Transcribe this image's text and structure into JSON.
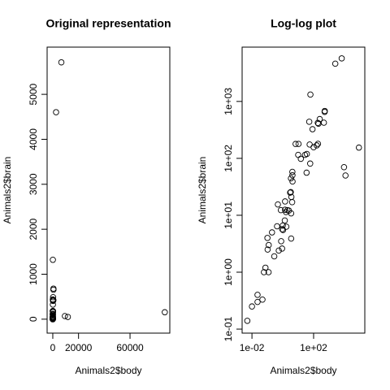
{
  "chart_data": [
    {
      "type": "scatter",
      "title": "Original representation",
      "x_label": "Animals2$body",
      "y_label": "Animals2$brain",
      "log": false,
      "x": [
        3.385,
        0.48,
        1.35,
        465,
        36.33,
        27.66,
        14.83,
        1.04,
        4.19,
        0.425,
        0.101,
        0.92,
        1,
        0.005,
        0.06,
        3.5,
        2,
        1.7,
        2547,
        0.023,
        187.1,
        521,
        0.785,
        10,
        3.3,
        0.2,
        1.41,
        529,
        207,
        85,
        0.75,
        62,
        6654,
        3.5,
        6.8,
        35,
        4.05,
        0.12,
        0.023,
        0.01,
        1.4,
        250,
        2.5,
        55.5,
        100,
        52.16,
        10.55,
        0.55,
        60,
        3.6,
        4.288,
        0.28,
        0.075,
        0.122,
        0.048,
        192,
        3,
        160,
        0.9,
        1.62,
        0.104,
        4.235,
        11700,
        9400,
        87000
      ],
      "values": [
        44.5,
        15.5,
        8.1,
        423,
        119.5,
        115,
        98.2,
        5.5,
        58,
        6.4,
        4,
        5.7,
        6.6,
        0.14,
        1,
        10.8,
        12.3,
        6.3,
        4603,
        0.3,
        419,
        655,
        3.5,
        115,
        25.6,
        5,
        17.5,
        680,
        406,
        325,
        12.3,
        1320,
        5712,
        3.9,
        179,
        56,
        17,
        1,
        0.4,
        0.25,
        12.5,
        490,
        12.1,
        175,
        157,
        440,
        179.5,
        2.4,
        81,
        21,
        39.2,
        1.9,
        1.2,
        3,
        0.33,
        180,
        25,
        169,
        2.6,
        11.4,
        2.5,
        50.4,
        50,
        70,
        154.5
      ],
      "xlim": [
        -4400,
        90900
      ],
      "ylim": [
        -310,
        6050
      ],
      "xticks": [
        0,
        20000,
        60000
      ],
      "yticks": [
        0,
        1000,
        2000,
        3000,
        4000,
        5000
      ]
    },
    {
      "type": "scatter",
      "title": "Log-log plot",
      "x_label": "Animals2$body",
      "y_label": "Animals2$brain",
      "log": true,
      "x": [
        3.385,
        0.48,
        1.35,
        465,
        36.33,
        27.66,
        14.83,
        1.04,
        4.19,
        0.425,
        0.101,
        0.92,
        1,
        0.005,
        0.06,
        3.5,
        2,
        1.7,
        2547,
        0.023,
        187.1,
        521,
        0.785,
        10,
        3.3,
        0.2,
        1.41,
        529,
        207,
        85,
        0.75,
        62,
        6654,
        3.5,
        6.8,
        35,
        4.05,
        0.12,
        0.023,
        0.01,
        1.4,
        250,
        2.5,
        55.5,
        100,
        52.16,
        10.55,
        0.55,
        60,
        3.6,
        4.288,
        0.28,
        0.075,
        0.122,
        0.048,
        192,
        3,
        160,
        0.9,
        1.62,
        0.104,
        4.235,
        11700,
        9400,
        87000
      ],
      "values": [
        44.5,
        15.5,
        8.1,
        423,
        119.5,
        115,
        98.2,
        5.5,
        58,
        6.4,
        4,
        5.7,
        6.6,
        0.14,
        1,
        10.8,
        12.3,
        6.3,
        4603,
        0.3,
        419,
        655,
        3.5,
        115,
        25.6,
        5,
        17.5,
        680,
        406,
        325,
        12.3,
        1320,
        5712,
        3.9,
        179,
        56,
        17,
        1,
        0.4,
        0.25,
        12.5,
        490,
        12.1,
        175,
        157,
        440,
        179.5,
        2.4,
        81,
        21,
        39.2,
        1.9,
        1.2,
        3,
        0.33,
        180,
        25,
        169,
        2.6,
        11.4,
        2.5,
        50.4,
        50,
        70,
        154.5
      ],
      "xlim": [
        0.0023,
        210000
      ],
      "ylim": [
        0.085,
        9000
      ],
      "xticks": [
        {
          "value": 0.01,
          "label": "1e-02"
        },
        {
          "value": 100,
          "label": "1e+02"
        }
      ],
      "yticks": [
        {
          "value": 0.1,
          "label": "1e-01"
        },
        {
          "value": 1,
          "label": "1e+00"
        },
        {
          "value": 10,
          "label": "1e+01"
        },
        {
          "value": 100,
          "label": "1e+02"
        },
        {
          "value": 1000,
          "label": "1e+03"
        }
      ]
    }
  ]
}
